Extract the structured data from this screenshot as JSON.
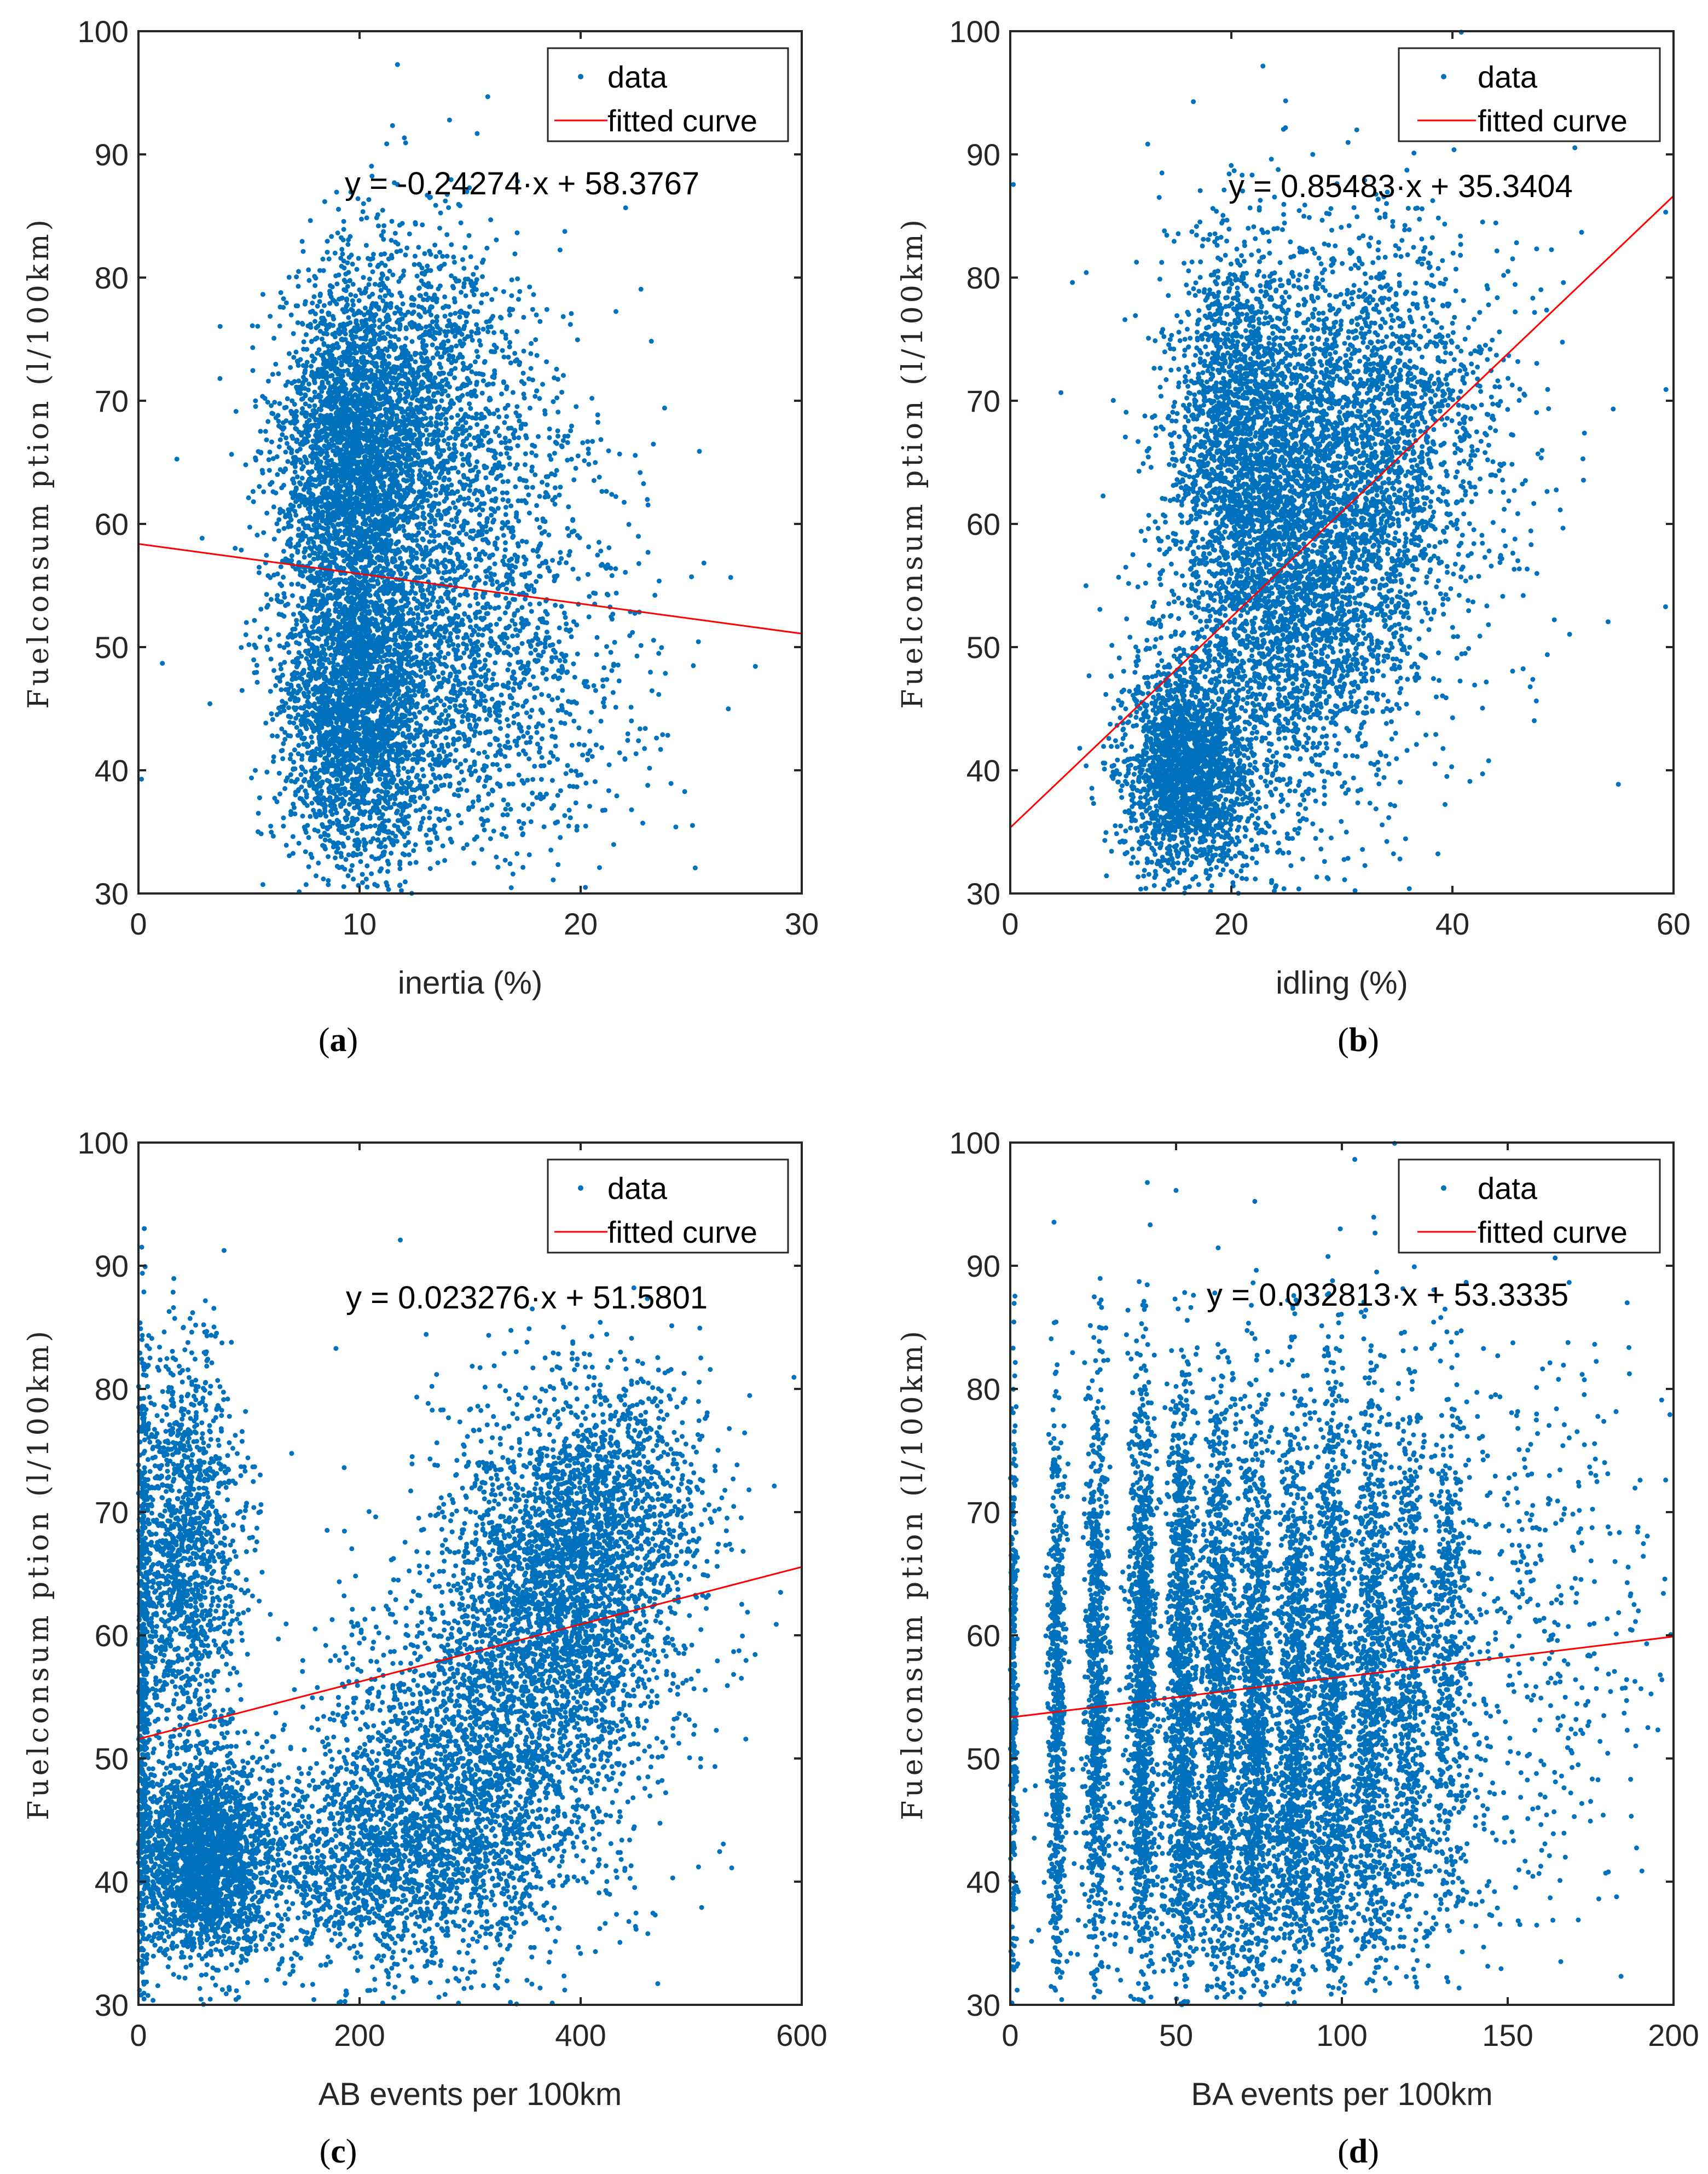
{
  "figure": {
    "colors": {
      "data": "#0072BD",
      "fit": "#FF0000",
      "axis": "#262626"
    }
  },
  "chart_data": [
    {
      "type": "scatter",
      "panel_label": "(a)",
      "panel_letter": "a",
      "xlabel": "inertia (%)",
      "ylabel": "Fuelconsum ption (l/100km)",
      "xlim": [
        0,
        30
      ],
      "ylim": [
        30,
        100
      ],
      "xticks": [
        0,
        10,
        20,
        30
      ],
      "yticks": [
        30,
        40,
        50,
        60,
        70,
        80,
        90,
        100
      ],
      "equation": "y = -0.24274·x + 58.3767",
      "fit": {
        "slope": -0.24274,
        "intercept": 58.3767
      },
      "legend": {
        "position": "top-right",
        "entries": [
          "data",
          "fitted curve"
        ]
      },
      "series": [
        {
          "name": "data",
          "clusters": [
            {
              "x": 9.5,
              "y": 65,
              "sx": 1.6,
              "sy": 7,
              "n": 2600
            },
            {
              "x": 9.8,
              "y": 45,
              "sx": 1.6,
              "sy": 6,
              "n": 2600
            },
            {
              "x": 12.5,
              "y": 70,
              "sx": 2.2,
              "sy": 7,
              "n": 1400
            },
            {
              "x": 13.5,
              "y": 48,
              "sx": 2.8,
              "sy": 7,
              "n": 1100
            },
            {
              "x": 16,
              "y": 60,
              "sx": 3,
              "sy": 10,
              "n": 650
            },
            {
              "x": 18,
              "y": 45,
              "sx": 3.5,
              "sy": 7,
              "n": 300
            },
            {
              "x": 11,
              "y": 55,
              "sx": 4,
              "sy": 14,
              "n": 200
            }
          ]
        }
      ]
    },
    {
      "type": "scatter",
      "panel_label": "(b)",
      "panel_letter": "b",
      "xlabel": "idling (%)",
      "ylabel": "Fuelconsum ption (l/100km)",
      "xlim": [
        0,
        60
      ],
      "ylim": [
        30,
        100
      ],
      "xticks": [
        0,
        20,
        40,
        60
      ],
      "yticks": [
        30,
        40,
        50,
        60,
        70,
        80,
        90,
        100
      ],
      "equation": "y = 0.85483·x + 35.3404",
      "fit": {
        "slope": 0.85483,
        "intercept": 35.3404
      },
      "legend": {
        "position": "top-right",
        "entries": [
          "data",
          "fitted curve"
        ]
      },
      "series": [
        {
          "name": "data",
          "clusters": [
            {
              "x": 16,
              "y": 40,
              "sx": 3,
              "sy": 4.5,
              "n": 2200
            },
            {
              "x": 21,
              "y": 67,
              "sx": 3.5,
              "sy": 8,
              "n": 2200
            },
            {
              "x": 28,
              "y": 56,
              "sx": 5,
              "sy": 8,
              "n": 2000
            },
            {
              "x": 33,
              "y": 70,
              "sx": 4.5,
              "sy": 7,
              "n": 1300
            },
            {
              "x": 24,
              "y": 50,
              "sx": 5,
              "sy": 10,
              "n": 900
            },
            {
              "x": 40,
              "y": 65,
              "sx": 5,
              "sy": 9,
              "n": 300
            },
            {
              "x": 30,
              "y": 60,
              "sx": 14,
              "sy": 15,
              "n": 150
            }
          ]
        }
      ]
    },
    {
      "type": "scatter",
      "panel_label": "(c)",
      "panel_letter": "c",
      "xlabel": "AB events per 100km",
      "ylabel": "Fuelconsum ption (l/100km)",
      "xlim": [
        0,
        600
      ],
      "ylim": [
        30,
        100
      ],
      "xticks": [
        0,
        200,
        400,
        600
      ],
      "yticks": [
        30,
        40,
        50,
        60,
        70,
        80,
        90,
        100
      ],
      "equation": "y = 0.023276·x + 51.5801",
      "fit": {
        "slope": 0.023276,
        "intercept": 51.5801
      },
      "legend": {
        "position": "top-right",
        "entries": [
          "data",
          "fitted curve"
        ]
      },
      "series": [
        {
          "name": "data",
          "clusters": [
            {
              "x": 60,
              "y": 42,
              "sx": 30,
              "sy": 4,
              "n": 2400
            },
            {
              "x": 40,
              "y": 67,
              "sx": 25,
              "sy": 8,
              "n": 1500
            },
            {
              "x": 4,
              "y": 55,
              "sx": 3,
              "sy": 14,
              "n": 600
            },
            {
              "x": 380,
              "y": 63,
              "sx": 55,
              "sy": 7,
              "n": 2600
            },
            {
              "x": 300,
              "y": 48,
              "sx": 65,
              "sy": 7,
              "n": 2200
            },
            {
              "x": 220,
              "y": 42,
              "sx": 55,
              "sy": 4.5,
              "n": 800
            },
            {
              "x": 430,
              "y": 72,
              "sx": 45,
              "sy": 5,
              "n": 800
            },
            {
              "x": 150,
              "y": 40,
              "sx": 60,
              "sy": 5,
              "n": 500
            },
            {
              "x": 300,
              "y": 58,
              "sx": 150,
              "sy": 15,
              "n": 150
            }
          ]
        }
      ]
    },
    {
      "type": "scatter",
      "panel_label": "(d)",
      "panel_letter": "d",
      "xlabel": "BA events per 100km",
      "ylabel": "Fuelconsum ption (l/100km)",
      "xlim": [
        0,
        200
      ],
      "ylim": [
        30,
        100
      ],
      "xticks": [
        0,
        50,
        100,
        150,
        200
      ],
      "yticks": [
        30,
        40,
        50,
        60,
        70,
        80,
        90,
        100
      ],
      "equation": "y = 0.032813·x + 53.3335",
      "fit": {
        "slope": 0.032813,
        "intercept": 53.3335
      },
      "legend": {
        "position": "top-right",
        "entries": [
          "data",
          "fitted curve"
        ]
      },
      "series": [
        {
          "name": "data",
          "clusters": [
            {
              "x": 14,
              "y": 55,
              "sx": 1.2,
              "sy": 11,
              "n": 650
            },
            {
              "x": 26,
              "y": 57,
              "sx": 1.6,
              "sy": 11,
              "n": 800
            },
            {
              "x": 40,
              "y": 57,
              "sx": 2,
              "sy": 12,
              "n": 1100
            },
            {
              "x": 52,
              "y": 56,
              "sx": 2.2,
              "sy": 12,
              "n": 1100
            },
            {
              "x": 63,
              "y": 56,
              "sx": 2.4,
              "sy": 12,
              "n": 1000
            },
            {
              "x": 74,
              "y": 56,
              "sx": 2.4,
              "sy": 12,
              "n": 1000
            },
            {
              "x": 86,
              "y": 56,
              "sx": 2.5,
              "sy": 12,
              "n": 950
            },
            {
              "x": 97,
              "y": 57,
              "sx": 2.5,
              "sy": 12,
              "n": 900
            },
            {
              "x": 109,
              "y": 57,
              "sx": 2.6,
              "sy": 12,
              "n": 800
            },
            {
              "x": 120,
              "y": 58,
              "sx": 2.6,
              "sy": 11,
              "n": 600
            },
            {
              "x": 132,
              "y": 59,
              "sx": 3,
              "sy": 11,
              "n": 450
            },
            {
              "x": 80,
              "y": 42,
              "sx": 30,
              "sy": 5,
              "n": 1400
            },
            {
              "x": 150,
              "y": 62,
              "sx": 18,
              "sy": 11,
              "n": 350
            },
            {
              "x": 175,
              "y": 60,
              "sx": 15,
              "sy": 12,
              "n": 150
            },
            {
              "x": 1,
              "y": 55,
              "sx": 0.5,
              "sy": 12,
              "n": 300
            }
          ]
        }
      ]
    }
  ]
}
